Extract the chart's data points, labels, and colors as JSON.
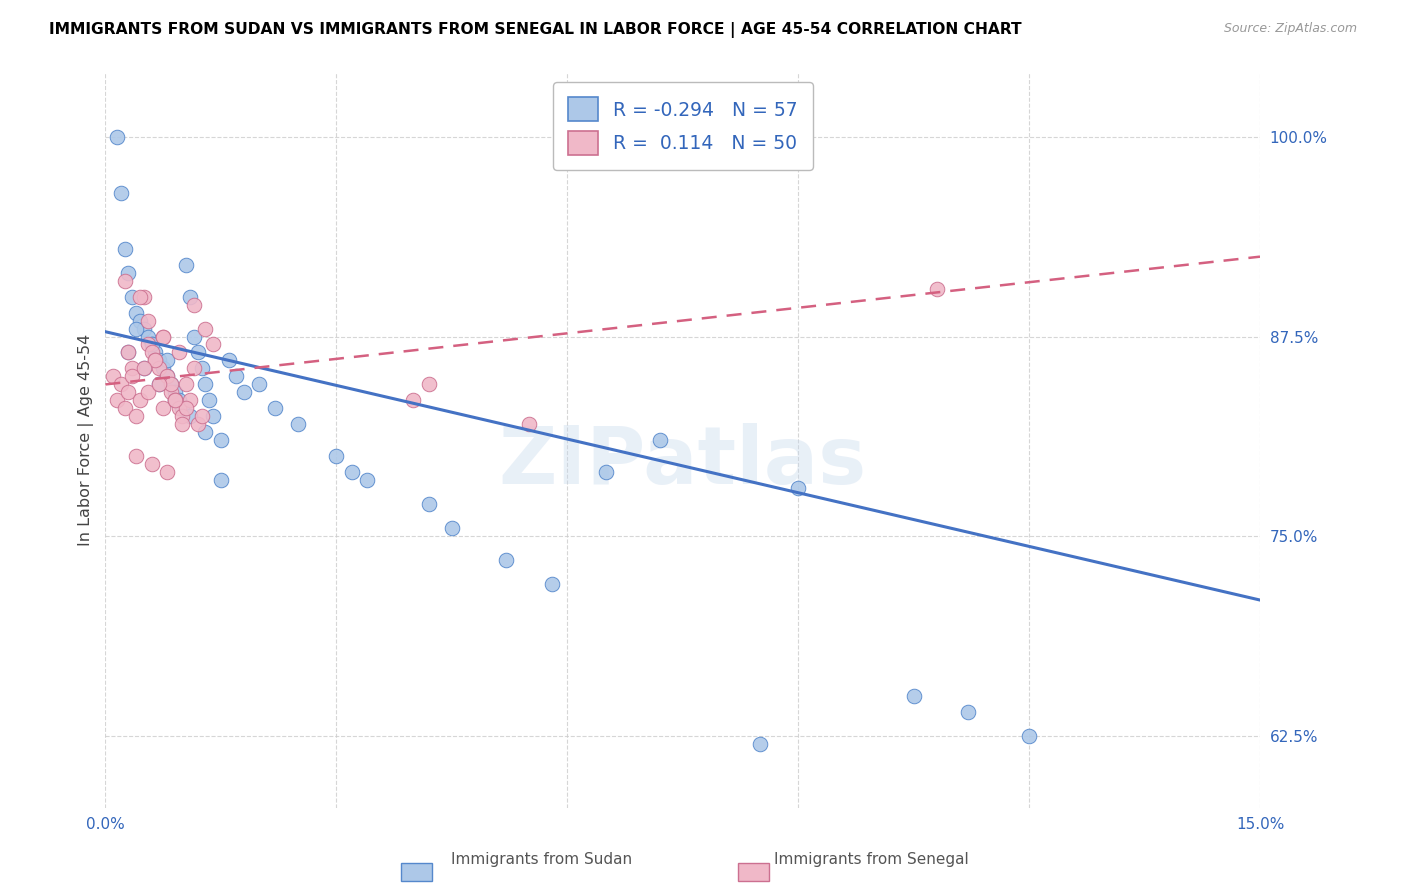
{
  "title": "IMMIGRANTS FROM SUDAN VS IMMIGRANTS FROM SENEGAL IN LABOR FORCE | AGE 45-54 CORRELATION CHART",
  "source": "Source: ZipAtlas.com",
  "ylabel": "In Labor Force | Age 45-54",
  "xlim": [
    0.0,
    15.0
  ],
  "ylim": [
    58.0,
    104.0
  ],
  "x_ticks": [
    0.0,
    3.0,
    6.0,
    9.0,
    12.0,
    15.0
  ],
  "x_tick_labels": [
    "0.0%",
    "",
    "",
    "",
    "",
    "15.0%"
  ],
  "y_ticks": [
    62.5,
    75.0,
    87.5,
    100.0
  ],
  "y_tick_labels": [
    "62.5%",
    "75.0%",
    "87.5%",
    "100.0%"
  ],
  "sudan_fill": "#adc8e8",
  "sudan_edge": "#5588cc",
  "senegal_fill": "#f0b8c8",
  "senegal_edge": "#cc7090",
  "sudan_line_color": "#4472c4",
  "senegal_line_color": "#d46080",
  "legend_r_sudan": "-0.294",
  "legend_n_sudan": "57",
  "legend_r_senegal": "0.114",
  "legend_n_senegal": "50",
  "sudan_line_x0": 0.0,
  "sudan_line_y0": 87.8,
  "sudan_line_x1": 15.0,
  "sudan_line_y1": 71.0,
  "senegal_line_x0": 0.0,
  "senegal_line_y0": 84.5,
  "senegal_line_x1": 15.0,
  "senegal_line_y1": 92.5,
  "sudan_x": [
    0.15,
    0.2,
    0.25,
    0.3,
    0.35,
    0.4,
    0.45,
    0.5,
    0.55,
    0.6,
    0.65,
    0.7,
    0.75,
    0.8,
    0.85,
    0.9,
    0.95,
    1.0,
    1.05,
    1.1,
    1.15,
    1.2,
    1.25,
    1.3,
    1.35,
    1.4,
    1.5,
    1.6,
    1.7,
    1.8,
    2.0,
    2.2,
    2.5,
    3.0,
    3.2,
    3.4,
    4.2,
    4.5,
    5.2,
    5.8,
    6.5,
    7.2,
    8.5,
    9.0,
    10.5,
    11.2,
    12.0,
    0.3,
    0.5,
    0.7,
    0.9,
    1.1,
    1.3,
    1.5,
    0.4,
    0.6,
    0.8
  ],
  "sudan_y": [
    100.0,
    96.5,
    93.0,
    91.5,
    90.0,
    89.0,
    88.5,
    88.0,
    87.5,
    87.0,
    86.5,
    86.0,
    85.5,
    85.0,
    84.5,
    84.0,
    83.5,
    83.0,
    92.0,
    90.0,
    87.5,
    86.5,
    85.5,
    84.5,
    83.5,
    82.5,
    81.0,
    86.0,
    85.0,
    84.0,
    84.5,
    83.0,
    82.0,
    80.0,
    79.0,
    78.5,
    77.0,
    75.5,
    73.5,
    72.0,
    79.0,
    81.0,
    62.0,
    78.0,
    65.0,
    64.0,
    62.5,
    86.5,
    85.5,
    84.5,
    83.5,
    82.5,
    81.5,
    78.5,
    88.0,
    87.0,
    86.0
  ],
  "senegal_x": [
    0.1,
    0.15,
    0.2,
    0.25,
    0.3,
    0.35,
    0.4,
    0.45,
    0.5,
    0.55,
    0.6,
    0.65,
    0.7,
    0.75,
    0.8,
    0.85,
    0.9,
    0.95,
    1.0,
    1.05,
    1.1,
    1.15,
    1.2,
    1.3,
    1.4,
    0.25,
    0.45,
    0.65,
    0.85,
    1.05,
    1.25,
    0.35,
    0.55,
    0.75,
    0.3,
    0.5,
    0.7,
    0.9,
    0.4,
    0.6,
    0.8,
    1.0,
    0.55,
    0.75,
    0.95,
    1.15,
    4.0,
    4.2,
    5.5,
    10.8
  ],
  "senegal_y": [
    85.0,
    83.5,
    84.5,
    83.0,
    84.0,
    85.5,
    82.5,
    83.5,
    90.0,
    87.0,
    86.5,
    86.0,
    85.5,
    87.5,
    85.0,
    84.0,
    83.5,
    83.0,
    82.5,
    84.5,
    83.5,
    89.5,
    82.0,
    88.0,
    87.0,
    91.0,
    90.0,
    86.0,
    84.5,
    83.0,
    82.5,
    85.0,
    84.0,
    83.0,
    86.5,
    85.5,
    84.5,
    83.5,
    80.0,
    79.5,
    79.0,
    82.0,
    88.5,
    87.5,
    86.5,
    85.5,
    83.5,
    84.5,
    82.0,
    90.5
  ]
}
